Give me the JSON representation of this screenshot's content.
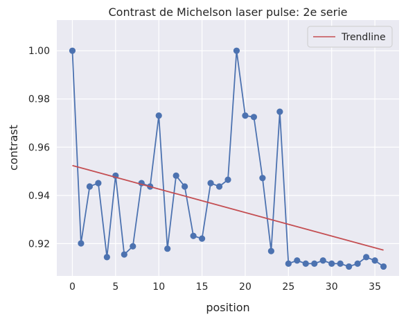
{
  "chart_data": {
    "type": "line",
    "title": "Contrast de Michelson laser pulse: 2e serie",
    "xlabel": "position",
    "ylabel": "contrast",
    "xlim": [
      -1.8,
      37.8
    ],
    "ylim": [
      0.9066,
      1.0127
    ],
    "xticks": [
      0,
      5,
      10,
      15,
      20,
      25,
      30,
      35
    ],
    "xtick_labels": [
      "0",
      "5",
      "10",
      "15",
      "20",
      "25",
      "30",
      "35"
    ],
    "yticks": [
      0.92,
      0.94,
      0.96,
      0.98,
      1.0
    ],
    "ytick_labels": [
      "0.92",
      "0.94",
      "0.96",
      "0.98",
      "1.00"
    ],
    "grid": true,
    "legend_position": "top-right",
    "series": [
      {
        "name": "",
        "color": "#4c72b0",
        "style": "line-markers",
        "x": [
          0,
          1,
          2,
          3,
          4,
          5,
          6,
          7,
          8,
          9,
          10,
          11,
          12,
          13,
          14,
          15,
          16,
          17,
          18,
          19,
          20,
          21,
          22,
          23,
          24,
          25,
          26,
          27,
          28,
          29,
          30,
          31,
          32,
          33,
          34,
          35,
          36
        ],
        "y": [
          1.0,
          0.9201,
          0.9437,
          0.9451,
          0.9144,
          0.9482,
          0.9155,
          0.9189,
          0.9451,
          0.9437,
          0.9731,
          0.9179,
          0.9482,
          0.9437,
          0.9232,
          0.9221,
          0.9451,
          0.9437,
          0.9465,
          1.0,
          0.9731,
          0.9725,
          0.9472,
          0.9169,
          0.9747,
          0.9117,
          0.913,
          0.9117,
          0.9117,
          0.913,
          0.9117,
          0.9117,
          0.9105,
          0.9117,
          0.9144,
          0.913,
          0.9105
        ]
      },
      {
        "name": "Trendline",
        "color": "#c44e52",
        "style": "line",
        "x": [
          0,
          36
        ],
        "y": [
          0.9524,
          0.9173
        ]
      }
    ]
  }
}
